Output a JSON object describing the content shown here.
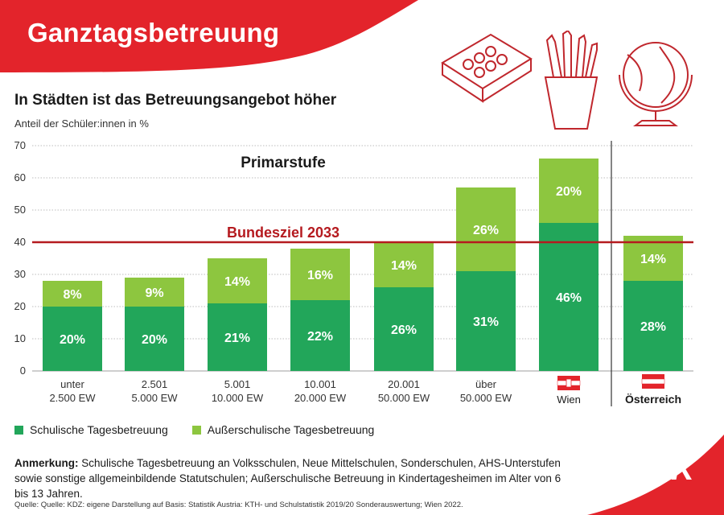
{
  "header": {
    "title": "Ganztagsbetreuung"
  },
  "colors": {
    "brand_red": "#e3242b",
    "school": "#22a65a",
    "extracurricular": "#8dc63f",
    "target_line": "#b51a1f"
  },
  "illustration_icons": [
    "paint-box-icon",
    "pencil-cup-icon",
    "globe-icon"
  ],
  "chart_data": {
    "type": "bar",
    "stacked": true,
    "title": "In Städten ist das Betreuungsangebot höher",
    "ylabel": "Anteil der Schüler:innen in %",
    "panel_label": "Primarstufe",
    "ylim": [
      0,
      70
    ],
    "yticks": [
      0,
      10,
      20,
      30,
      40,
      50,
      60,
      70
    ],
    "grid": true,
    "categories": [
      [
        "unter",
        "2.500 EW"
      ],
      [
        "2.501",
        "5.000 EW"
      ],
      [
        "5.001",
        "10.000 EW"
      ],
      [
        "10.001",
        "20.000 EW"
      ],
      [
        "20.001",
        "50.000 EW"
      ],
      [
        "über",
        "50.000 EW"
      ],
      [
        "Wien"
      ],
      [
        "Österreich"
      ]
    ],
    "series": [
      {
        "name": "Schulische Tagesbetreuung",
        "values": [
          20,
          20,
          21,
          22,
          26,
          31,
          46,
          28
        ],
        "labels": [
          "20%",
          "20%",
          "21%",
          "22%",
          "26%",
          "31%",
          "46%",
          "28%"
        ]
      },
      {
        "name": "Außerschulische Tagesbetreuung",
        "values": [
          8,
          9,
          14,
          16,
          14,
          26,
          20,
          14
        ],
        "labels": [
          "8%",
          "9%",
          "14%",
          "16%",
          "14%",
          "26%",
          "20%",
          "14%"
        ]
      }
    ],
    "reference_line": {
      "value": 40,
      "label": "Bundesziel 2033"
    },
    "flags": [
      "vienna-flag-icon",
      "austria-flag-icon"
    ]
  },
  "note": {
    "label": "Anmerkung:",
    "text": "Schulische Tagesbetreuung an Volksschulen, Neue Mittelschulen, Sonderschulen, AHS-Unterstufen sowie sonstige allgemeinbildende Statutschulen; Außerschulische Betreuung in Kindertagesheimen im Alter von 6 bis 13 Jahren."
  },
  "source": "Quelle: Quelle: KDZ: eigene Darstellung auf Basis: Statistik Austria: KTH- und Schulstatistik 2019/20 Sonderauswertung; Wien 2022.",
  "logo_text": "AK"
}
